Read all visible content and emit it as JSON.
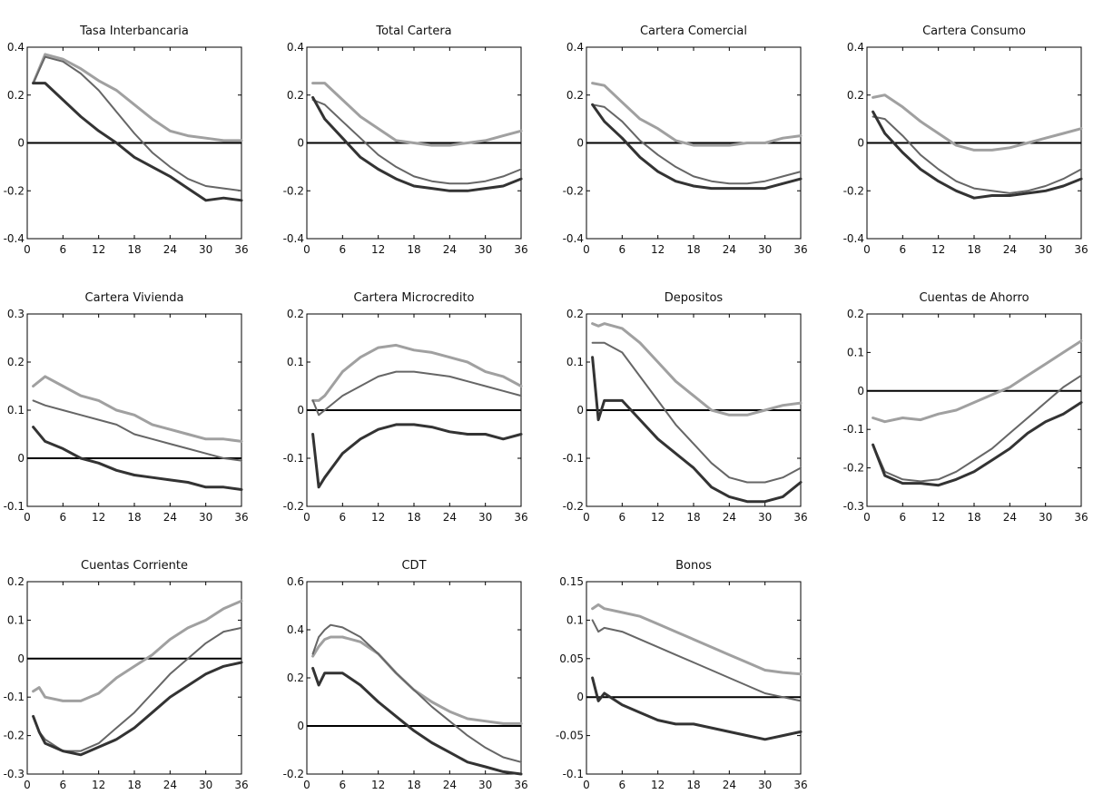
{
  "chart_data": [
    {
      "type": "line",
      "title": "Tasa Interbancaria",
      "x": [
        1,
        3,
        6,
        9,
        12,
        15,
        18,
        21,
        24,
        27,
        30,
        33,
        36
      ],
      "xlim": [
        0,
        36
      ],
      "ylim": [
        -0.4,
        0.4
      ],
      "xticks": [
        "0",
        "6",
        "12",
        "18",
        "24",
        "30",
        "36"
      ],
      "yticks": [
        "-0.4",
        "-0.2",
        "0",
        "0.2",
        "0.4"
      ],
      "series": [
        {
          "values": [
            0.25,
            0.37,
            0.35,
            0.31,
            0.26,
            0.22,
            0.16,
            0.1,
            0.05,
            0.03,
            0.02,
            0.01,
            0.01
          ]
        },
        {
          "values": [
            0.25,
            0.36,
            0.34,
            0.29,
            0.22,
            0.13,
            0.04,
            -0.04,
            -0.1,
            -0.15,
            -0.18,
            -0.19,
            -0.2
          ]
        },
        {
          "values": [
            0.25,
            0.25,
            0.18,
            0.11,
            0.05,
            0.0,
            -0.06,
            -0.1,
            -0.14,
            -0.19,
            -0.24,
            -0.23,
            -0.24
          ]
        }
      ]
    },
    {
      "type": "line",
      "title": "Total Cartera",
      "x": [
        1,
        3,
        6,
        9,
        12,
        15,
        18,
        21,
        24,
        27,
        30,
        33,
        36
      ],
      "xlim": [
        0,
        36
      ],
      "ylim": [
        -0.4,
        0.4
      ],
      "xticks": [
        "0",
        "6",
        "12",
        "18",
        "24",
        "30",
        "36"
      ],
      "yticks": [
        "-0.4",
        "-0.2",
        "0",
        "0.2",
        "0.4"
      ],
      "series": [
        {
          "values": [
            0.25,
            0.25,
            0.18,
            0.11,
            0.06,
            0.01,
            0.0,
            -0.01,
            -0.01,
            0.0,
            0.01,
            0.03,
            0.05
          ]
        },
        {
          "values": [
            0.18,
            0.16,
            0.09,
            0.02,
            -0.05,
            -0.1,
            -0.14,
            -0.16,
            -0.17,
            -0.17,
            -0.16,
            -0.14,
            -0.11
          ]
        },
        {
          "values": [
            0.19,
            0.1,
            0.02,
            -0.06,
            -0.11,
            -0.15,
            -0.18,
            -0.19,
            -0.2,
            -0.2,
            -0.19,
            -0.18,
            -0.15
          ]
        }
      ]
    },
    {
      "type": "line",
      "title": "Cartera Comercial",
      "x": [
        1,
        3,
        6,
        9,
        12,
        15,
        18,
        21,
        24,
        27,
        30,
        33,
        36
      ],
      "xlim": [
        0,
        36
      ],
      "ylim": [
        -0.4,
        0.4
      ],
      "xticks": [
        "0",
        "6",
        "12",
        "18",
        "24",
        "30",
        "36"
      ],
      "yticks": [
        "-0.4",
        "-0.2",
        "0",
        "0.2",
        "0.4"
      ],
      "series": [
        {
          "values": [
            0.25,
            0.24,
            0.17,
            0.1,
            0.06,
            0.01,
            -0.01,
            -0.01,
            -0.01,
            0.0,
            0.0,
            0.02,
            0.03
          ]
        },
        {
          "values": [
            0.16,
            0.15,
            0.09,
            0.01,
            -0.05,
            -0.1,
            -0.14,
            -0.16,
            -0.17,
            -0.17,
            -0.16,
            -0.14,
            -0.12
          ]
        },
        {
          "values": [
            0.16,
            0.09,
            0.02,
            -0.06,
            -0.12,
            -0.16,
            -0.18,
            -0.19,
            -0.19,
            -0.19,
            -0.19,
            -0.17,
            -0.15
          ]
        }
      ]
    },
    {
      "type": "line",
      "title": "Cartera Consumo",
      "x": [
        1,
        3,
        6,
        9,
        12,
        15,
        18,
        21,
        24,
        27,
        30,
        33,
        36
      ],
      "xlim": [
        0,
        36
      ],
      "ylim": [
        -0.4,
        0.4
      ],
      "xticks": [
        "0",
        "6",
        "12",
        "18",
        "24",
        "30",
        "36"
      ],
      "yticks": [
        "-0.4",
        "-0.2",
        "0",
        "0.2",
        "0.4"
      ],
      "series": [
        {
          "values": [
            0.19,
            0.2,
            0.15,
            0.09,
            0.04,
            -0.01,
            -0.03,
            -0.03,
            -0.02,
            0.0,
            0.02,
            0.04,
            0.06
          ]
        },
        {
          "values": [
            0.11,
            0.1,
            0.03,
            -0.05,
            -0.11,
            -0.16,
            -0.19,
            -0.2,
            -0.21,
            -0.2,
            -0.18,
            -0.15,
            -0.11
          ]
        },
        {
          "values": [
            0.13,
            0.04,
            -0.04,
            -0.11,
            -0.16,
            -0.2,
            -0.23,
            -0.22,
            -0.22,
            -0.21,
            -0.2,
            -0.18,
            -0.15
          ]
        }
      ]
    },
    {
      "type": "line",
      "title": "Cartera Vivienda",
      "x": [
        1,
        3,
        6,
        9,
        12,
        15,
        18,
        21,
        24,
        27,
        30,
        33,
        36
      ],
      "xlim": [
        0,
        36
      ],
      "ylim": [
        -0.1,
        0.3
      ],
      "xticks": [
        "0",
        "6",
        "12",
        "18",
        "24",
        "30",
        "36"
      ],
      "yticks": [
        "-0.1",
        "0",
        "0.1",
        "0.2",
        "0.3"
      ],
      "series": [
        {
          "values": [
            0.15,
            0.17,
            0.15,
            0.13,
            0.12,
            0.1,
            0.09,
            0.07,
            0.06,
            0.05,
            0.04,
            0.04,
            0.035
          ]
        },
        {
          "values": [
            0.12,
            0.11,
            0.1,
            0.09,
            0.08,
            0.07,
            0.05,
            0.04,
            0.03,
            0.02,
            0.01,
            0.0,
            -0.005
          ]
        },
        {
          "values": [
            0.065,
            0.035,
            0.02,
            0.0,
            -0.01,
            -0.025,
            -0.035,
            -0.04,
            -0.045,
            -0.05,
            -0.06,
            -0.06,
            -0.065
          ]
        }
      ]
    },
    {
      "type": "line",
      "title": "Cartera Microcredito",
      "x": [
        1,
        2,
        3,
        6,
        9,
        12,
        15,
        18,
        21,
        24,
        27,
        30,
        33,
        36
      ],
      "xlim": [
        0,
        36
      ],
      "ylim": [
        -0.2,
        0.2
      ],
      "xticks": [
        "0",
        "6",
        "12",
        "18",
        "24",
        "30",
        "36"
      ],
      "yticks": [
        "-0.2",
        "-0.1",
        "0",
        "0.1",
        "0.2"
      ],
      "series": [
        {
          "values": [
            0.02,
            0.02,
            0.03,
            0.08,
            0.11,
            0.13,
            0.135,
            0.125,
            0.12,
            0.11,
            0.1,
            0.08,
            0.07,
            0.05
          ]
        },
        {
          "values": [
            0.02,
            -0.01,
            0.0,
            0.03,
            0.05,
            0.07,
            0.08,
            0.08,
            0.075,
            0.07,
            0.06,
            0.05,
            0.04,
            0.03
          ]
        },
        {
          "values": [
            -0.05,
            -0.16,
            -0.14,
            -0.09,
            -0.06,
            -0.04,
            -0.03,
            -0.03,
            -0.035,
            -0.045,
            -0.05,
            -0.05,
            -0.06,
            -0.05
          ]
        }
      ]
    },
    {
      "type": "line",
      "title": "Depositos",
      "x": [
        1,
        2,
        3,
        6,
        9,
        12,
        15,
        18,
        21,
        24,
        27,
        30,
        33,
        36
      ],
      "xlim": [
        0,
        36
      ],
      "ylim": [
        -0.2,
        0.2
      ],
      "xticks": [
        "0",
        "6",
        "12",
        "18",
        "24",
        "30",
        "36"
      ],
      "yticks": [
        "-0.2",
        "-0.1",
        "0",
        "0.1",
        "0.2"
      ],
      "series": [
        {
          "values": [
            0.18,
            0.175,
            0.18,
            0.17,
            0.14,
            0.1,
            0.06,
            0.03,
            0.0,
            -0.01,
            -0.01,
            0.0,
            0.01,
            0.015
          ]
        },
        {
          "values": [
            0.14,
            0.14,
            0.14,
            0.12,
            0.07,
            0.02,
            -0.03,
            -0.07,
            -0.11,
            -0.14,
            -0.15,
            -0.15,
            -0.14,
            -0.12
          ]
        },
        {
          "values": [
            0.11,
            -0.02,
            0.02,
            0.02,
            -0.02,
            -0.06,
            -0.09,
            -0.12,
            -0.16,
            -0.18,
            -0.19,
            -0.19,
            -0.18,
            -0.15
          ]
        }
      ]
    },
    {
      "type": "line",
      "title": "Cuentas de Ahorro",
      "x": [
        1,
        3,
        6,
        9,
        12,
        15,
        18,
        21,
        24,
        27,
        30,
        33,
        36
      ],
      "xlim": [
        0,
        36
      ],
      "ylim": [
        -0.3,
        0.2
      ],
      "xticks": [
        "0",
        "6",
        "12",
        "18",
        "24",
        "30",
        "36"
      ],
      "yticks": [
        "-0.3",
        "-0.2",
        "-0.1",
        "0",
        "0.1",
        "0.2"
      ],
      "series": [
        {
          "values": [
            -0.07,
            -0.08,
            -0.07,
            -0.075,
            -0.06,
            -0.05,
            -0.03,
            -0.01,
            0.01,
            0.04,
            0.07,
            0.1,
            0.13
          ]
        },
        {
          "values": [
            -0.14,
            -0.21,
            -0.23,
            -0.235,
            -0.23,
            -0.21,
            -0.18,
            -0.15,
            -0.11,
            -0.07,
            -0.03,
            0.01,
            0.04
          ]
        },
        {
          "values": [
            -0.14,
            -0.22,
            -0.24,
            -0.24,
            -0.245,
            -0.23,
            -0.21,
            -0.18,
            -0.15,
            -0.11,
            -0.08,
            -0.06,
            -0.03
          ]
        }
      ]
    },
    {
      "type": "line",
      "title": "Cuentas Corriente",
      "x": [
        1,
        2,
        3,
        6,
        9,
        12,
        15,
        18,
        21,
        24,
        27,
        30,
        33,
        36
      ],
      "xlim": [
        0,
        36
      ],
      "ylim": [
        -0.3,
        0.2
      ],
      "xticks": [
        "0",
        "6",
        "12",
        "18",
        "24",
        "30",
        "36"
      ],
      "yticks": [
        "-0.3",
        "-0.2",
        "-0.1",
        "0",
        "0.1",
        "0.2"
      ],
      "series": [
        {
          "values": [
            -0.085,
            -0.075,
            -0.1,
            -0.11,
            -0.11,
            -0.09,
            -0.05,
            -0.02,
            0.01,
            0.05,
            0.08,
            0.1,
            0.13,
            0.15
          ]
        },
        {
          "values": [
            -0.15,
            -0.19,
            -0.21,
            -0.24,
            -0.24,
            -0.22,
            -0.18,
            -0.14,
            -0.09,
            -0.04,
            0.0,
            0.04,
            0.07,
            0.08
          ]
        },
        {
          "values": [
            -0.15,
            -0.19,
            -0.22,
            -0.24,
            -0.25,
            -0.23,
            -0.21,
            -0.18,
            -0.14,
            -0.1,
            -0.07,
            -0.04,
            -0.02,
            -0.01
          ]
        }
      ]
    },
    {
      "type": "line",
      "title": "CDT",
      "x": [
        1,
        2,
        3,
        4,
        6,
        9,
        12,
        15,
        18,
        21,
        24,
        27,
        30,
        33,
        36
      ],
      "xlim": [
        0,
        36
      ],
      "ylim": [
        -0.2,
        0.6
      ],
      "xticks": [
        "0",
        "6",
        "12",
        "18",
        "24",
        "30",
        "36"
      ],
      "yticks": [
        "-0.2",
        "0",
        "0.2",
        "0.4",
        "0.6"
      ],
      "series": [
        {
          "values": [
            0.29,
            0.33,
            0.36,
            0.37,
            0.37,
            0.35,
            0.3,
            0.22,
            0.15,
            0.1,
            0.06,
            0.03,
            0.02,
            0.01,
            0.01
          ]
        },
        {
          "values": [
            0.3,
            0.37,
            0.4,
            0.42,
            0.41,
            0.37,
            0.3,
            0.22,
            0.15,
            0.08,
            0.02,
            -0.04,
            -0.09,
            -0.13,
            -0.15
          ]
        },
        {
          "values": [
            0.24,
            0.17,
            0.22,
            0.22,
            0.22,
            0.17,
            0.1,
            0.04,
            -0.02,
            -0.07,
            -0.11,
            -0.15,
            -0.17,
            -0.19,
            -0.2
          ]
        }
      ]
    },
    {
      "type": "line",
      "title": "Bonos",
      "x": [
        1,
        2,
        3,
        6,
        9,
        12,
        15,
        18,
        21,
        24,
        27,
        30,
        33,
        36
      ],
      "xlim": [
        0,
        36
      ],
      "ylim": [
        -0.1,
        0.15
      ],
      "xticks": [
        "0",
        "6",
        "12",
        "18",
        "24",
        "30",
        "36"
      ],
      "yticks": [
        "-0.1",
        "-0.05",
        "0",
        "0.05",
        "0.1",
        "0.15"
      ],
      "series": [
        {
          "values": [
            0.115,
            0.12,
            0.115,
            0.11,
            0.105,
            0.095,
            0.085,
            0.075,
            0.065,
            0.055,
            0.045,
            0.035,
            0.032,
            0.03
          ]
        },
        {
          "values": [
            0.1,
            0.085,
            0.09,
            0.085,
            0.075,
            0.065,
            0.055,
            0.045,
            0.035,
            0.025,
            0.015,
            0.005,
            0.0,
            -0.005
          ]
        },
        {
          "values": [
            0.025,
            -0.005,
            0.005,
            -0.01,
            -0.02,
            -0.03,
            -0.035,
            -0.035,
            -0.04,
            -0.045,
            -0.05,
            -0.055,
            -0.05,
            -0.045
          ]
        }
      ]
    }
  ],
  "colors": {
    "series": [
      "#a0a0a0",
      "#666666",
      "#333333"
    ],
    "zero_line": "#000000",
    "axes": "#000000"
  }
}
